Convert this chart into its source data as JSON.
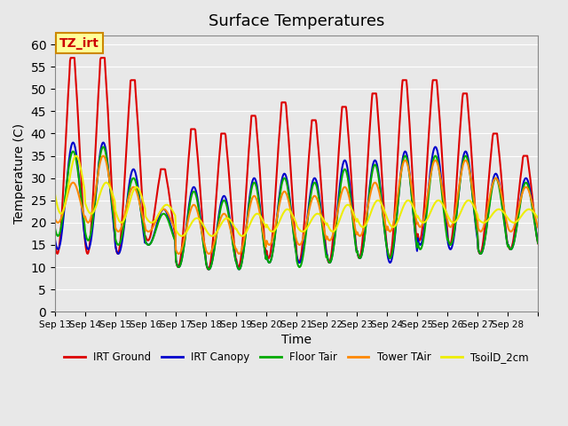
{
  "title": "Surface Temperatures",
  "xlabel": "Time",
  "ylabel": "Temperature (C)",
  "ylim": [
    0,
    62
  ],
  "yticks": [
    0,
    5,
    10,
    15,
    20,
    25,
    30,
    35,
    40,
    45,
    50,
    55,
    60
  ],
  "background_color": "#e8e8e8",
  "plot_bg_color": "#e8e8e8",
  "annotation_text": "TZ_irt",
  "annotation_bg": "#ffff99",
  "annotation_border": "#cc8800",
  "series": {
    "IRT Ground": {
      "color": "#dd0000",
      "lw": 1.5
    },
    "IRT Canopy": {
      "color": "#0000cc",
      "lw": 1.5
    },
    "Floor Tair": {
      "color": "#00aa00",
      "lw": 1.5
    },
    "Tower TAir": {
      "color": "#ff8800",
      "lw": 1.5
    },
    "TsoilD_2cm": {
      "color": "#eeee00",
      "lw": 1.5
    }
  },
  "x_tick_labels": [
    "Sep 13",
    "Sep 14",
    "Sep 15",
    "Sep 16",
    "Sep 17",
    "Sep 18",
    "Sep 19",
    "Sep 20",
    "Sep 21",
    "Sep 22",
    "Sep 23",
    "Sep 24",
    "Sep 25",
    "Sep 26",
    "Sep 27",
    "Sep 28"
  ],
  "num_days": 16,
  "points_per_day": 48
}
